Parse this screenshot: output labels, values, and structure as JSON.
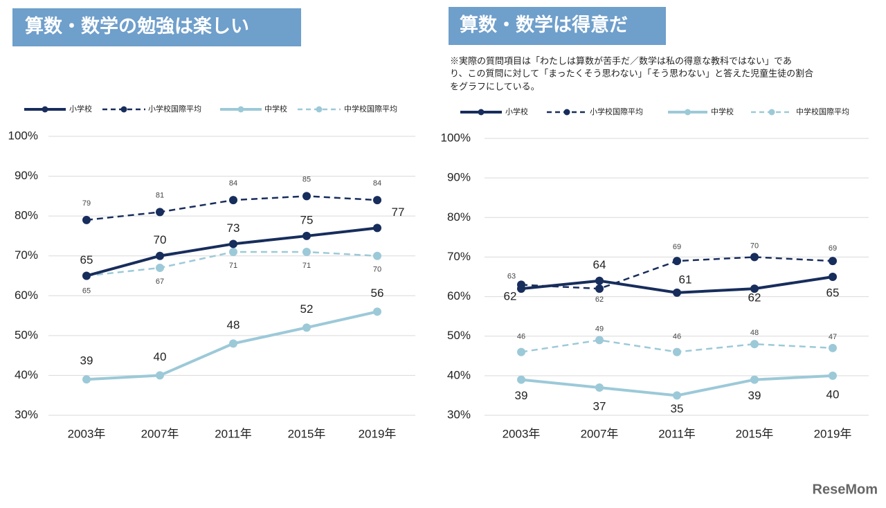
{
  "chart_data": [
    {
      "type": "line",
      "title": "算数・数学の勉強は楽しい",
      "categories": [
        "2003年",
        "2007年",
        "2011年",
        "2015年",
        "2019年"
      ],
      "ylim": [
        30,
        100
      ],
      "yticks": [
        {
          "value": 30,
          "label": "30%"
        },
        {
          "value": 40,
          "label": "40%"
        },
        {
          "value": 50,
          "label": "50%"
        },
        {
          "value": 60,
          "label": "60%"
        },
        {
          "value": 70,
          "label": "70%"
        },
        {
          "value": 80,
          "label": "80%"
        },
        {
          "value": 90,
          "label": "90%"
        },
        {
          "value": 100,
          "label": "100%"
        }
      ],
      "grid": true,
      "series": [
        {
          "name": "小学校",
          "color": "#172d5c",
          "dashed": false,
          "values": [
            65,
            70,
            73,
            75,
            77
          ]
        },
        {
          "name": "小学校国際平均",
          "color": "#172d5c",
          "dashed": true,
          "values": [
            79,
            81,
            84,
            85,
            84
          ]
        },
        {
          "name": "中学校",
          "color": "#9cc9d8",
          "dashed": false,
          "values": [
            39,
            40,
            48,
            52,
            56
          ]
        },
        {
          "name": "中学校国際平均",
          "color": "#9cc9d8",
          "dashed": true,
          "values": [
            65,
            67,
            71,
            71,
            70
          ]
        }
      ]
    },
    {
      "type": "line",
      "title": "算数・数学は得意だ",
      "note": [
        "※実際の質問項目は「わたしは算数が苦手だ／数学は私の得意な教科ではない」であ",
        "り、この質問に対して「まったくそう思わない」「そう思わない」と答えた児童生徒の割合",
        "をグラフにしている。"
      ],
      "categories": [
        "2003年",
        "2007年",
        "2011年",
        "2015年",
        "2019年"
      ],
      "ylim": [
        30,
        100
      ],
      "yticks": [
        {
          "value": 30,
          "label": "30%"
        },
        {
          "value": 40,
          "label": "40%"
        },
        {
          "value": 50,
          "label": "50%"
        },
        {
          "value": 60,
          "label": "60%"
        },
        {
          "value": 70,
          "label": "70%"
        },
        {
          "value": 80,
          "label": "80%"
        },
        {
          "value": 90,
          "label": "90%"
        },
        {
          "value": 100,
          "label": "100%"
        }
      ],
      "grid": true,
      "series": [
        {
          "name": "小学校",
          "color": "#172d5c",
          "dashed": false,
          "values": [
            62,
            64,
            61,
            62,
            65
          ]
        },
        {
          "name": "小学校国際平均",
          "color": "#172d5c",
          "dashed": true,
          "values": [
            63,
            62,
            69,
            70,
            69
          ]
        },
        {
          "name": "中学校",
          "color": "#9cc9d8",
          "dashed": false,
          "values": [
            39,
            37,
            35,
            39,
            40
          ]
        },
        {
          "name": "中学校国際平均",
          "color": "#9cc9d8",
          "dashed": true,
          "values": [
            46,
            49,
            46,
            48,
            47
          ]
        }
      ]
    }
  ],
  "watermark": "ReseMom"
}
